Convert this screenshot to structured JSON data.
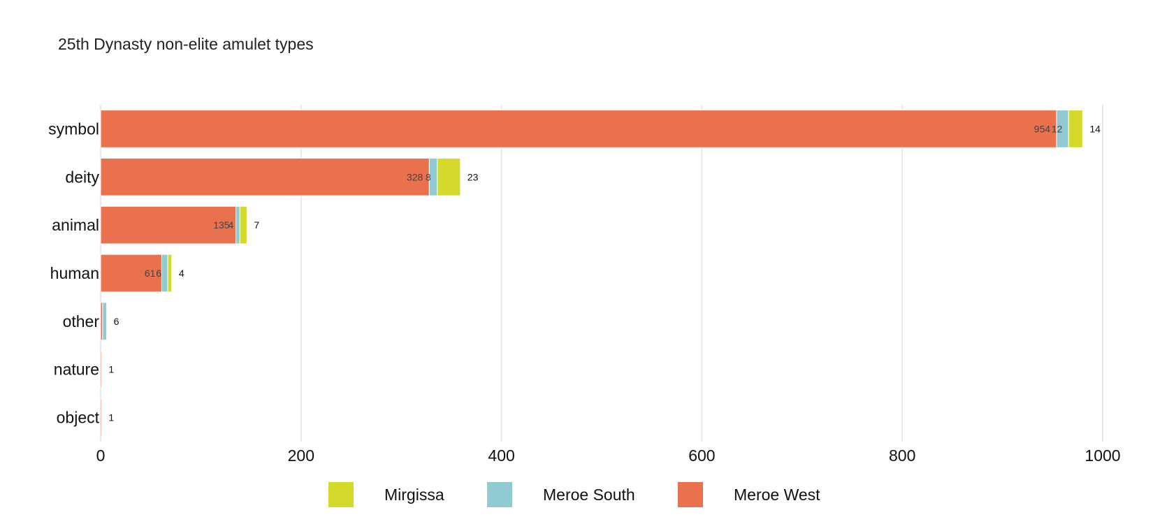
{
  "chart_data": {
    "type": "bar",
    "orientation": "horizontal",
    "stacked": true,
    "title": "25th Dynasty non-elite amulet types",
    "xlabel": "",
    "ylabel": "",
    "xlim": [
      0,
      1000
    ],
    "x_ticks": [
      "0",
      "200",
      "400",
      "600",
      "800",
      "1000"
    ],
    "grid": true,
    "legend_position": "bottom",
    "categories": [
      "symbol",
      "deity",
      "animal",
      "human",
      "other",
      "nature",
      "object"
    ],
    "series": [
      {
        "name": "Meroe West",
        "color": "#ea714e",
        "values": [
          954,
          328,
          135,
          61,
          2,
          1,
          1
        ]
      },
      {
        "name": "Meroe South",
        "color": "#91cbd1",
        "values": [
          12,
          8,
          4,
          6,
          4,
          0,
          0
        ]
      },
      {
        "name": "Mirgissa",
        "color": "#d5d92c",
        "values": [
          14,
          23,
          7,
          4,
          0,
          0,
          0
        ]
      }
    ],
    "segment_labels": [
      [
        "954",
        "12",
        "14"
      ],
      [
        "328",
        "8",
        "23"
      ],
      [
        "135",
        "4",
        "7"
      ],
      [
        "61",
        "6",
        "4"
      ],
      [
        "",
        "",
        "6"
      ],
      [
        "",
        "",
        "1"
      ],
      [
        "",
        "",
        "1"
      ]
    ],
    "legend_order": [
      "Mirgissa",
      "Meroe South",
      "Meroe West"
    ]
  }
}
